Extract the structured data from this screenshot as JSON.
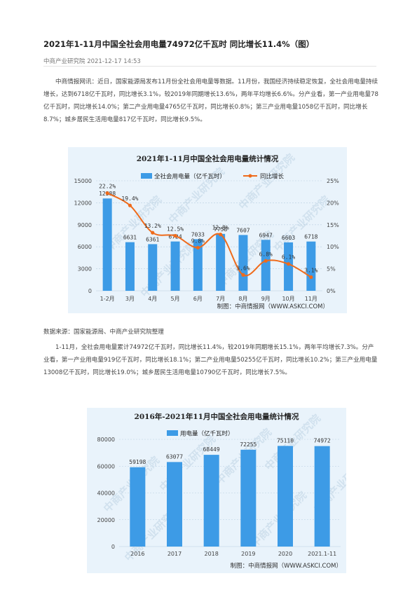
{
  "article": {
    "title": "2021年1-11月中国全社会用电量74972亿千瓦时 同比增长11.4%（图）",
    "meta": "中商产业研究院 2021-12-17 14:53",
    "para1": "中商情报网讯：近日，国家能源局发布11月份全社会用电量等数据。11月份，我国经济持续稳定恢复，全社会用电量持续增长，达到6718亿千瓦时，同比增长3.1%，较2019年同期增长13.6%，两年平均增长6.6%。分产业看，第一产业用电量78亿千瓦时，同比增长14.0%；第二产业用电量4765亿千瓦时，同比增长0.8%；第三产业用电量1058亿千瓦时，同比增长8.7%；城乡居民生活用电量817亿千瓦时，同比增长9.5%。",
    "source": "数据来源：国家能源局、中商产业研究院整理",
    "para2": "1-11月，全社会用电量累计74972亿千瓦时，同比增长11.4%，较2019年同期增长15.1%，两年平均增长7.3%。分产业看，第一产业用电量919亿千瓦时，同比增长18.1%；第二产业用电量50255亿千瓦时，同比增长10.2%；第三产业用电量13008亿千瓦时，同比增长19.0%；城乡居民生活用电量10790亿千瓦时，同比增长7.5%。"
  },
  "colors": {
    "bar": "#3d9be6",
    "line": "#ef6a1a",
    "background": "#e9f3fb",
    "grid": "#b9cfe0"
  },
  "watermark": "中商产业研究院",
  "chart_data": [
    {
      "type": "bar+line",
      "title": "2021年1-11月中国全社会用电量统计情况",
      "credit": "制图：中商情报网（WWW.ASKCI.COM）",
      "categories": [
        "1-2月",
        "3月",
        "4月",
        "5月",
        "6月",
        "7月",
        "8月",
        "9月",
        "10月",
        "11月"
      ],
      "series": [
        {
          "name": "全社会用电量（亿千瓦时）",
          "type": "bar",
          "axis": "left",
          "values": [
            12588,
            6631,
            6361,
            6724,
            7033,
            7758,
            7607,
            6947,
            6603,
            6718
          ],
          "labels": [
            "12588",
            "6631",
            "6361",
            "6724",
            "7033",
            "7758",
            "7607",
            "6947",
            "6603",
            "6718"
          ]
        },
        {
          "name": "同比增长",
          "type": "line",
          "axis": "right",
          "values": [
            22.2,
            19.4,
            13.2,
            12.5,
            9.8,
            12.8,
            3.6,
            6.8,
            6.1,
            3.1
          ],
          "labels": [
            "22.2%",
            "19.4%",
            "13.2%",
            "12.5%",
            "9.8%",
            "12.8%",
            "3.6%",
            "6.8%",
            "6.1%",
            "3.1%"
          ]
        }
      ],
      "yleft": {
        "ticks": [
          0,
          3000,
          6000,
          9000,
          12000,
          15000
        ],
        "tick_labels": [
          "0",
          "3000",
          "6000",
          "9000",
          "12000",
          "15000"
        ]
      },
      "yright": {
        "ticks": [
          0,
          5,
          10,
          15,
          20,
          25
        ],
        "tick_labels": [
          "0%",
          "5%",
          "10%",
          "15%",
          "20%",
          "25%"
        ]
      },
      "legend_position": "top"
    },
    {
      "type": "bar",
      "title": "2016年-2021年11月中国全社会用电量统计情况",
      "credit": "制图：中商情报网（WWW.ASKCI.COM）",
      "categories": [
        "2016",
        "2017",
        "2018",
        "2019",
        "2020",
        "2021.1-11"
      ],
      "series": [
        {
          "name": "用电量（亿千瓦时）",
          "type": "bar",
          "values": [
            59198,
            63077,
            68449,
            72255,
            75110,
            74972
          ],
          "labels": [
            "59198",
            "63077",
            "68449",
            "72255",
            "75110",
            "74972"
          ]
        }
      ],
      "yleft": {
        "ticks": [
          0,
          20000,
          40000,
          60000,
          80000
        ],
        "tick_labels": [
          "0",
          "20000",
          "40000",
          "60000",
          "80000"
        ]
      },
      "legend_position": "top"
    }
  ]
}
